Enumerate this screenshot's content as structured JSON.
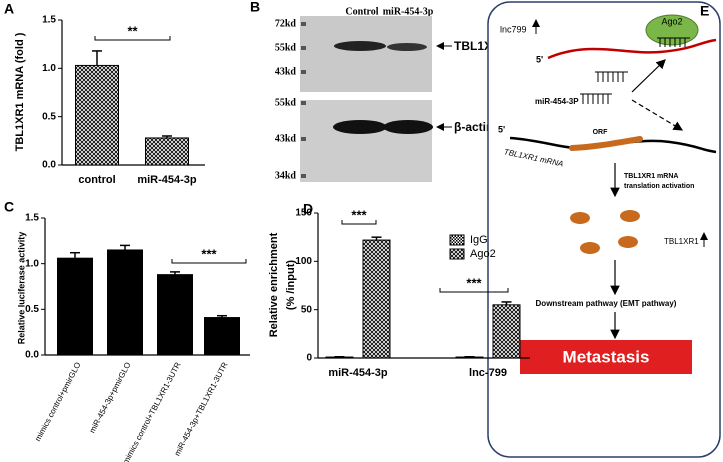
{
  "chart_data": [
    {
      "type": "bar",
      "label": "A",
      "y_label": "TBL1XR1 mRNA (fold )",
      "categories": [
        "control",
        "miR-454-3p"
      ],
      "values": [
        1.03,
        0.28
      ],
      "errors": [
        0.15,
        0.02
      ],
      "ylim": [
        0,
        1.5
      ],
      "yticks": [
        {
          "value": 0,
          "label": "0.0"
        },
        0.5,
        {
          "value": 1,
          "label": "1.0"
        },
        1.5
      ],
      "fill": "crosshatch",
      "annotations": [
        "**"
      ]
    },
    {
      "type": "bar",
      "label": "C",
      "y_label": "Relative luciferase activity",
      "categories": [
        "mimics control+pmirGLO",
        "miR-454-3p+pmirGLO",
        "mimics control+TBL1XR1-3UTR",
        "miR-454-3p+TBL1XR1-3UTR"
      ],
      "values": [
        1.06,
        1.15,
        0.88,
        0.41
      ],
      "errors": [
        0.06,
        0.05,
        0.03,
        0.02
      ],
      "ylim": [
        0,
        1.5
      ],
      "yticks": [
        {
          "value": 0,
          "label": "0.0"
        },
        0.5,
        {
          "value": 1,
          "label": "1.0"
        },
        1.5
      ],
      "color": "#000000",
      "rotated_labels": true,
      "annotations": [
        "***"
      ]
    },
    {
      "type": "bar",
      "label": "D",
      "y_label": [
        "Relative enrichment",
        "(% /input)"
      ],
      "categories": [
        "miR-454-3p",
        "lnc-799"
      ],
      "series": [
        {
          "name": "IgG",
          "fill": "checker",
          "values": [
            1,
            1
          ],
          "errors": [
            0.3,
            0.3
          ]
        },
        {
          "name": "Ago2",
          "fill": "crosshatch",
          "values": [
            122,
            55
          ],
          "errors": [
            3,
            3
          ]
        }
      ],
      "ylim": [
        0,
        150
      ],
      "yticks": [
        0,
        50,
        100,
        150
      ],
      "annotations": [
        "***",
        "***"
      ]
    }
  ],
  "blot": {
    "label": "B",
    "lanes": [
      "Control",
      "miR-454-3p"
    ],
    "top_markers": [
      "72kd",
      "55kd",
      "43kd"
    ],
    "top_band": "TBL1XR1",
    "bottom_markers": [
      "55kd",
      "43kd",
      "34kd"
    ],
    "bottom_band": "β-actin"
  },
  "diagram": {
    "label": "E",
    "lnc": "lnc799",
    "ago": "Ago2",
    "five_prime_top": "5'",
    "mirna": "miR-454-3P",
    "five_prime_bottom": "5'",
    "orf": "ORF",
    "mrna": "TBL1XR1 mRNA",
    "activation": [
      "TBL1XR1 mRNA",
      "translation activation"
    ],
    "protein": "TBL1XR1",
    "pathway": "Downstream  pathway (EMT pathway)",
    "outcome": "Metastasis"
  }
}
